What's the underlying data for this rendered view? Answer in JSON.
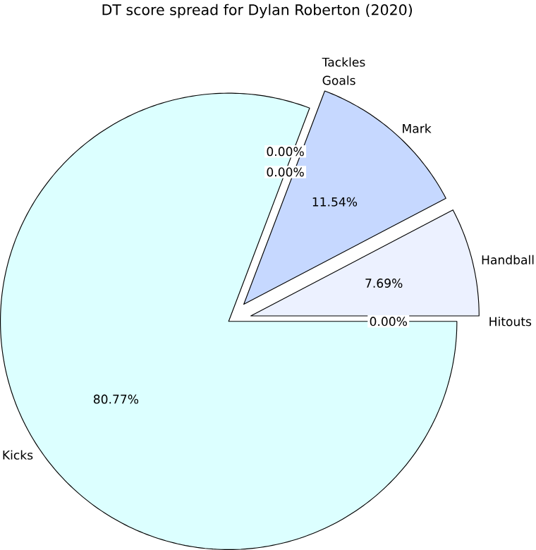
{
  "chart_data": {
    "type": "pie",
    "title": "DT score spread for Dylan Roberton (2020)",
    "categories": [
      "Hitouts",
      "Handball",
      "Mark",
      "Goals",
      "Tackles",
      "Kicks"
    ],
    "values": [
      0,
      7.69,
      11.54,
      0,
      0,
      80.77
    ],
    "value_labels": [
      "0.00%",
      "7.69%",
      "11.54%",
      "0.00%",
      "0.00%",
      "80.77%"
    ],
    "colors": [
      "#ffe4e1",
      "#ecf1ff",
      "#c6d8ff",
      "#fff5cc",
      "#e2ffe2",
      "#dcffff"
    ]
  }
}
